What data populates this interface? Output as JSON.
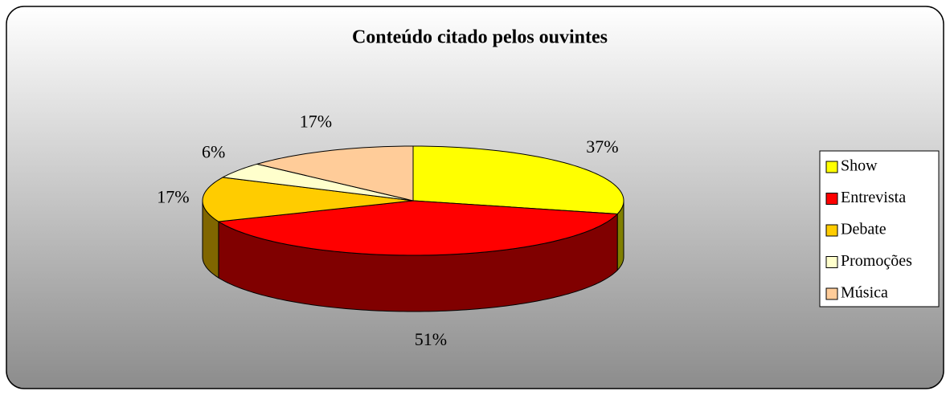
{
  "chart_data": {
    "type": "pie",
    "title": "Conteúdo citado pelos ouvintes",
    "categories": [
      "Show",
      "Entrevista",
      "Debate",
      "Promoções",
      "Música"
    ],
    "values": [
      37,
      51,
      17,
      6,
      17
    ],
    "value_labels": [
      "37%",
      "51%",
      "17%",
      "6%",
      "17%"
    ],
    "colors": [
      "#ffff00",
      "#ff0000",
      "#ffcc00",
      "#ffffcc",
      "#ffcc99"
    ],
    "legend": "right"
  }
}
